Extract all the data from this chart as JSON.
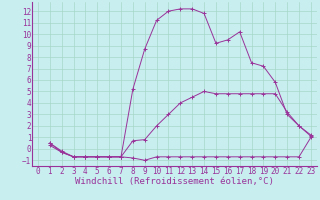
{
  "bg_color": "#c8eef0",
  "line_color": "#993399",
  "grid_color": "#a8d8c8",
  "xlabel": "Windchill (Refroidissement éolien,°C)",
  "xlabel_fontsize": 6.5,
  "tick_fontsize": 5.5,
  "xlim": [
    -0.5,
    23.5
  ],
  "ylim": [
    -1.5,
    12.8
  ],
  "yticks": [
    -1,
    0,
    1,
    2,
    3,
    4,
    5,
    6,
    7,
    8,
    9,
    10,
    11,
    12
  ],
  "xticks": [
    0,
    1,
    2,
    3,
    4,
    5,
    6,
    7,
    8,
    9,
    10,
    11,
    12,
    13,
    14,
    15,
    16,
    17,
    18,
    19,
    20,
    21,
    22,
    23
  ],
  "line1_x": [
    1,
    2,
    3,
    4,
    5,
    6,
    7,
    8,
    9,
    10,
    11,
    12,
    13,
    14,
    15,
    16,
    17,
    18,
    19,
    20,
    21,
    22,
    23
  ],
  "line1_y": [
    0.3,
    -0.3,
    -0.7,
    -0.7,
    -0.7,
    -0.7,
    -0.7,
    -0.8,
    -1.0,
    -0.7,
    -0.7,
    -0.7,
    -0.7,
    -0.7,
    -0.7,
    -0.7,
    -0.7,
    -0.7,
    -0.7,
    -0.7,
    -0.7,
    -0.7,
    1.0
  ],
  "line2_x": [
    1,
    2,
    3,
    4,
    5,
    6,
    7,
    8,
    9,
    10,
    11,
    12,
    13,
    14,
    15,
    16,
    17,
    18,
    19,
    20,
    21,
    22,
    23
  ],
  "line2_y": [
    0.5,
    -0.3,
    -0.7,
    -0.7,
    -0.7,
    -0.7,
    -0.7,
    0.7,
    0.8,
    2.0,
    3.0,
    4.0,
    4.5,
    5.0,
    4.8,
    4.8,
    4.8,
    4.8,
    4.8,
    4.8,
    3.2,
    2.0,
    1.1
  ],
  "line3_x": [
    1,
    2,
    3,
    4,
    5,
    6,
    7,
    8,
    9,
    10,
    11,
    12,
    13,
    14,
    15,
    16,
    17,
    18,
    19,
    20,
    21,
    22,
    23
  ],
  "line3_y": [
    0.5,
    -0.2,
    -0.7,
    -0.7,
    -0.7,
    -0.7,
    -0.7,
    5.2,
    8.7,
    11.2,
    12.0,
    12.2,
    12.2,
    11.8,
    9.2,
    9.5,
    10.2,
    7.5,
    7.2,
    5.8,
    3.0,
    2.0,
    1.2
  ]
}
